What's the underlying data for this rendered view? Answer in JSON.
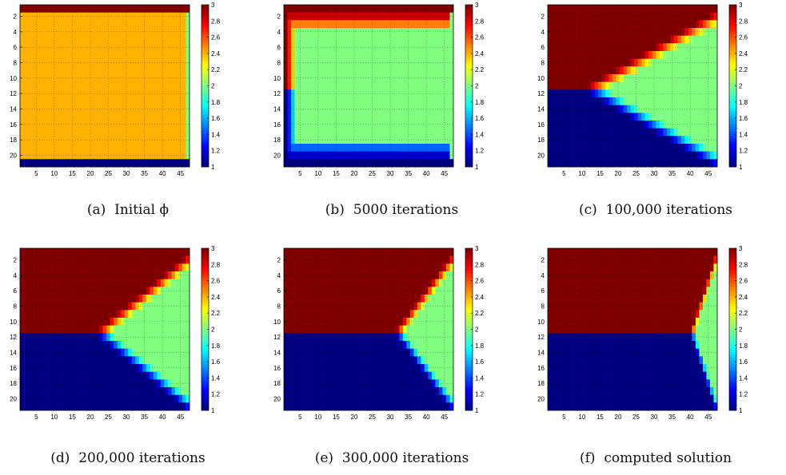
{
  "chart_data": [
    {
      "type": "heatmap",
      "caption": "(a)  Initial ϕ",
      "n_rows": 21,
      "n_cols": 47,
      "row_ticks": [
        2,
        4,
        6,
        8,
        10,
        12,
        14,
        16,
        18,
        20
      ],
      "col_ticks": [
        5,
        10,
        15,
        20,
        25,
        30,
        35,
        40,
        45
      ],
      "colorbar": {
        "range": [
          1,
          3
        ],
        "ticks": [
          "1",
          "1.2",
          "1.4",
          "1.6",
          "1.8",
          "2",
          "2.2",
          "2.4",
          "2.6",
          "2.8",
          "3"
        ]
      },
      "grid": true,
      "field": {
        "kind": "initial",
        "value": 2.4
      }
    },
    {
      "type": "heatmap",
      "caption": "(b)  5000 iterations",
      "n_rows": 21,
      "n_cols": 47,
      "row_ticks": [
        2,
        4,
        6,
        8,
        10,
        12,
        14,
        16,
        18,
        20
      ],
      "col_ticks": [
        5,
        10,
        15,
        20,
        25,
        30,
        35,
        40,
        45
      ],
      "colorbar": {
        "range": [
          1,
          3
        ],
        "ticks": [
          "1",
          "1.2",
          "1.4",
          "1.6",
          "1.8",
          "2",
          "2.2",
          "2.4",
          "2.6",
          "2.8",
          "3"
        ]
      },
      "grid": true,
      "field": {
        "kind": "early",
        "value": 2.0
      }
    },
    {
      "type": "heatmap",
      "caption": "(c)  100,000 iterations",
      "n_rows": 21,
      "n_cols": 47,
      "row_ticks": [
        2,
        4,
        6,
        8,
        10,
        12,
        14,
        16,
        18,
        20
      ],
      "col_ticks": [
        5,
        10,
        15,
        20,
        25,
        30,
        35,
        40,
        45
      ],
      "colorbar": {
        "range": [
          1,
          3
        ],
        "ticks": [
          "1",
          "1.2",
          "1.4",
          "1.6",
          "1.8",
          "2",
          "2.2",
          "2.4",
          "2.6",
          "2.8",
          "3"
        ]
      },
      "grid": true,
      "field": {
        "kind": "wedge",
        "tip_col": 10,
        "value": 2.0
      }
    },
    {
      "type": "heatmap",
      "caption": "(d)  200,000 iterations",
      "n_rows": 21,
      "n_cols": 47,
      "row_ticks": [
        2,
        4,
        6,
        8,
        10,
        12,
        14,
        16,
        18,
        20
      ],
      "col_ticks": [
        5,
        10,
        15,
        20,
        25,
        30,
        35,
        40,
        45
      ],
      "colorbar": {
        "range": [
          1,
          3
        ],
        "ticks": [
          "1",
          "1.2",
          "1.4",
          "1.6",
          "1.8",
          "2",
          "2.2",
          "2.4",
          "2.6",
          "2.8",
          "3"
        ]
      },
      "grid": true,
      "field": {
        "kind": "wedge",
        "tip_col": 21,
        "value": 2.0
      }
    },
    {
      "type": "heatmap",
      "caption": "(e)  300,000 iterations",
      "n_rows": 21,
      "n_cols": 47,
      "row_ticks": [
        2,
        4,
        6,
        8,
        10,
        12,
        14,
        16,
        18,
        20
      ],
      "col_ticks": [
        5,
        10,
        15,
        20,
        25,
        30,
        35,
        40,
        45
      ],
      "colorbar": {
        "range": [
          1,
          3
        ],
        "ticks": [
          "1",
          "1.2",
          "1.4",
          "1.6",
          "1.8",
          "2",
          "2.2",
          "2.4",
          "2.6",
          "2.8",
          "3"
        ]
      },
      "grid": true,
      "field": {
        "kind": "wedge",
        "tip_col": 31,
        "value": 2.0
      }
    },
    {
      "type": "heatmap",
      "caption": "(f)  computed solution",
      "n_rows": 21,
      "n_cols": 47,
      "row_ticks": [
        2,
        4,
        6,
        8,
        10,
        12,
        14,
        16,
        18,
        20
      ],
      "col_ticks": [
        5,
        10,
        15,
        20,
        25,
        30,
        35,
        40,
        45
      ],
      "colorbar": {
        "range": [
          1,
          3
        ],
        "ticks": [
          "1",
          "1.2",
          "1.4",
          "1.6",
          "1.8",
          "2",
          "2.2",
          "2.4",
          "2.6",
          "2.8",
          "3"
        ]
      },
      "grid": true,
      "field": {
        "kind": "wedge",
        "tip_col": 40,
        "value": 2.0
      }
    }
  ]
}
